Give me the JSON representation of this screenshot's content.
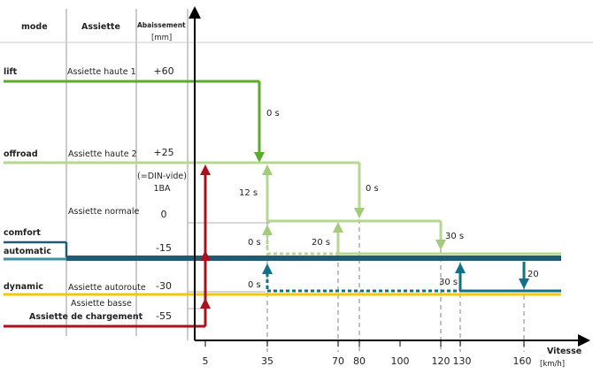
{
  "header": {
    "mode": "mode",
    "assiette": "Assiette",
    "abaissement": "Abaissement",
    "abaissement_unit": "[mm]"
  },
  "modes": {
    "lift": "lift",
    "offroad": "offroad",
    "comfort": "comfort",
    "automatic": "automatic",
    "dynamic": "dynamic"
  },
  "assiettes": {
    "haute1": "Assiette haute 1",
    "haute2": "Assiette haute 2",
    "normale": "Assiette normale",
    "autoroute": "Assiette autoroute",
    "basse": "Assiette basse",
    "chargement": "Assiette de chargement"
  },
  "abaissements": {
    "haute1": "+60",
    "haute2": "+25",
    "din_note_1": "(=DIN-vide)",
    "din_note_2": "1BA",
    "normale": "0",
    "comfort": "-15",
    "autoroute": "-30",
    "chargement": "-55"
  },
  "times": {
    "lift_down": "0 s",
    "offroad_down": "0 s",
    "rise_35_a": "12 s",
    "rise_35_b": "0 s",
    "rise_35_c": "0 s",
    "rise_70": "20 s",
    "down_120": "30 s",
    "rise_130": "30 s",
    "down_160": "20"
  },
  "x_axis": {
    "title": "Vitesse",
    "unit": "[km/h]",
    "ticks": [
      "5",
      "35",
      "70",
      "80",
      "100",
      "120",
      "130",
      "160"
    ]
  },
  "colors": {
    "lift": "#5aab2e",
    "offroad": "#b5d78f",
    "comfort_automatic": "#1f5b73",
    "automatic_edge": "#3f8fa5",
    "dynamic": "#f2c80f",
    "loading": "#a8111e",
    "teal_arrow": "#12708a",
    "light_green_arrow": "#a2cc7c",
    "grid": "#9a9a9a"
  }
}
